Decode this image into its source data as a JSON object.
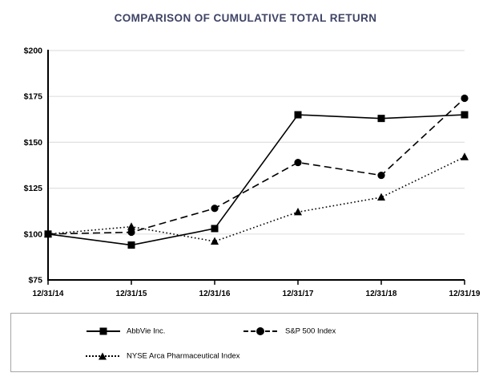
{
  "title": "COMPARISON OF CUMULATIVE TOTAL RETURN",
  "chart_data": {
    "type": "line",
    "title": "COMPARISON OF CUMULATIVE TOTAL RETURN",
    "x": [
      "12/31/14",
      "12/31/15",
      "12/31/16",
      "12/31/17",
      "12/31/18",
      "12/31/19"
    ],
    "series": [
      {
        "name": "AbbVie Inc.",
        "marker": "square",
        "line_style": "solid",
        "values": [
          100,
          94,
          103,
          165,
          163,
          165
        ]
      },
      {
        "name": "S&P 500 Index",
        "marker": "circle",
        "line_style": "dashed",
        "values": [
          100,
          101,
          114,
          139,
          132,
          174
        ]
      },
      {
        "name": "NYSE Arca Pharmaceutical Index",
        "marker": "triangle",
        "line_style": "dotted",
        "values": [
          100,
          104,
          96,
          112,
          120,
          142
        ]
      }
    ],
    "y_ticks": [
      "$200",
      "$175",
      "$150",
      "$125",
      "$100",
      "$75"
    ],
    "y_tick_values": [
      200,
      175,
      150,
      125,
      100,
      75
    ],
    "ylim": [
      75,
      200
    ],
    "grid": true,
    "legend_position": "bottom",
    "colors": {
      "series": "#000000",
      "grid": "#e0e0e0",
      "axis": "#000000",
      "title": "#3f4466",
      "legend_border": "#a6a6a6"
    }
  }
}
